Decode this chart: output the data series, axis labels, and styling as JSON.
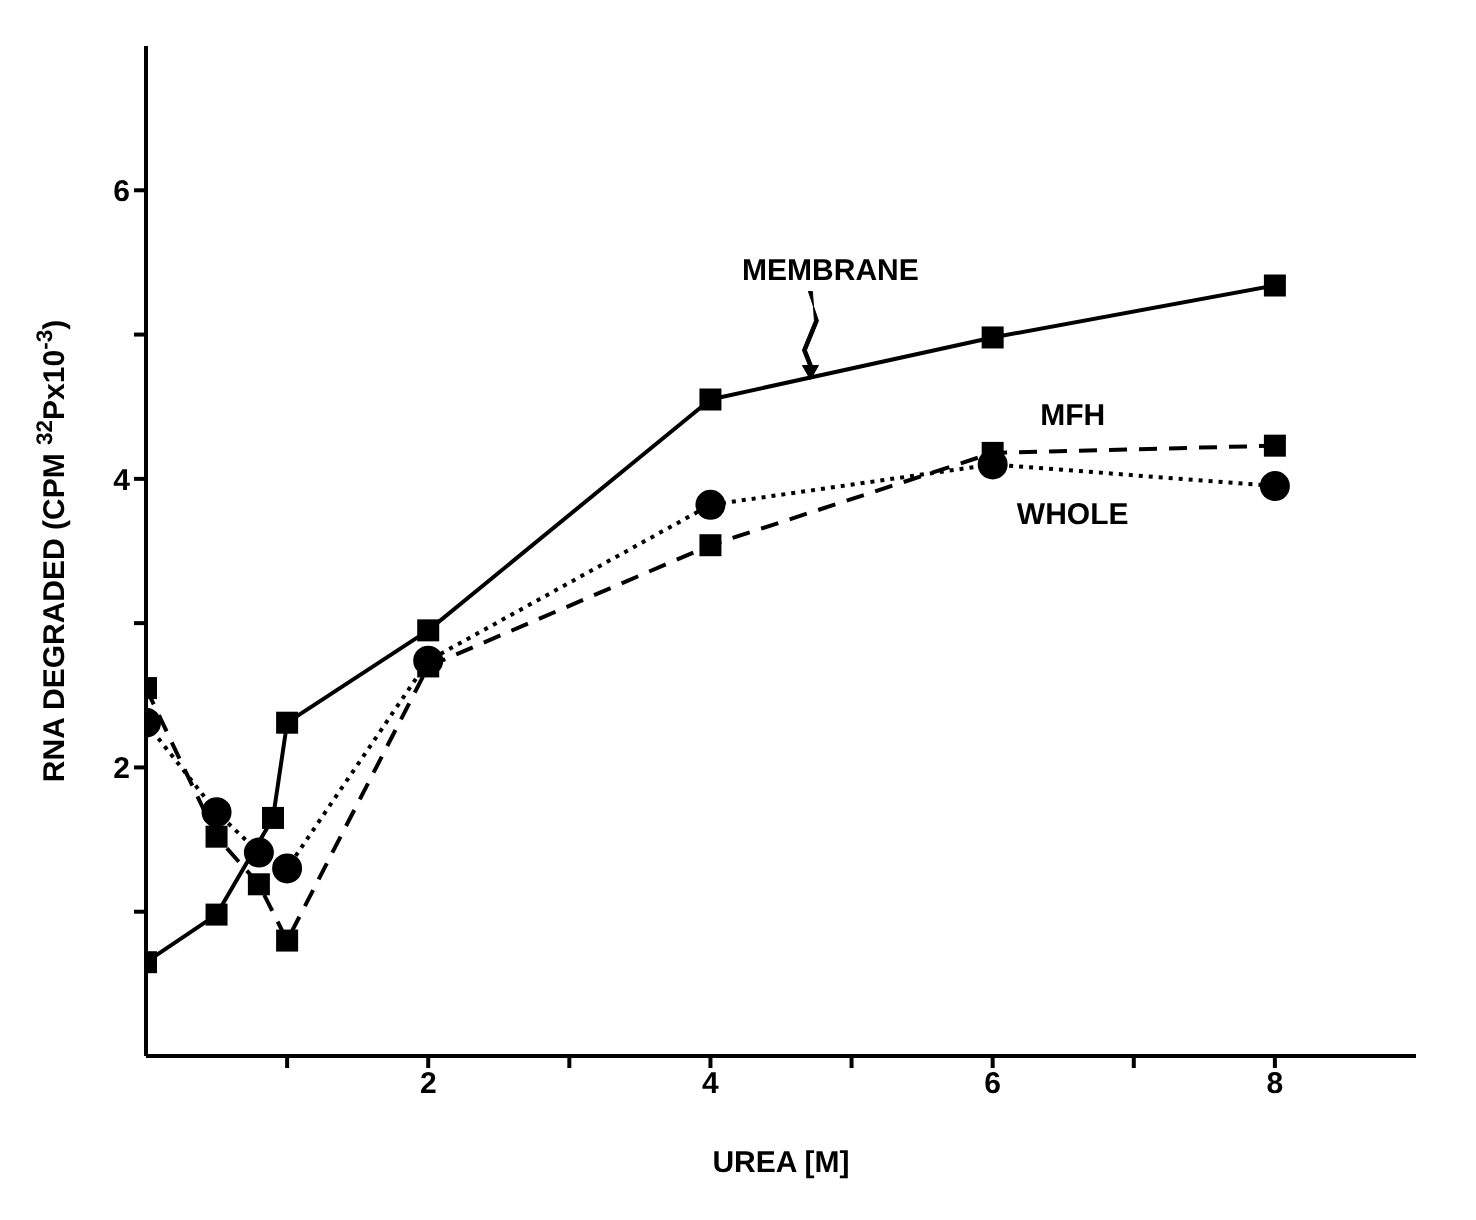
{
  "chart_data": {
    "type": "line",
    "xlabel": "UREA [M]",
    "ylabel": "RNA DEGRADED (CPM $^{32}$Px10$^{-3}$)",
    "xlim": [
      0,
      9
    ],
    "xticks": [
      {
        "value": 1,
        "label": null
      },
      2,
      {
        "value": 3,
        "label": null
      },
      4,
      {
        "value": 5,
        "label": null
      },
      6,
      {
        "value": 7,
        "label": null
      },
      8
    ],
    "ylim": [
      0,
      7
    ],
    "yticks": [
      {
        "value": 1,
        "label": null
      },
      2,
      {
        "value": 3,
        "label": null
      },
      4,
      {
        "value": 5,
        "label": null
      },
      6
    ],
    "grid": false,
    "series": [
      {
        "name": "MEMBRANE",
        "color": "#000000",
        "marker": "square",
        "line_style": "solid",
        "x": [
          0,
          0.5,
          0.9,
          1,
          2,
          4,
          6,
          8
        ],
        "values": [
          0.65,
          0.98,
          1.65,
          2.31,
          2.95,
          4.55,
          4.98,
          5.34
        ]
      },
      {
        "name": "MFH",
        "color": "#000000",
        "marker": "square",
        "line_style": "dashed",
        "x": [
          0,
          0.5,
          0.8,
          1,
          2,
          4,
          6,
          8
        ],
        "values": [
          2.55,
          1.52,
          1.19,
          0.8,
          2.7,
          3.54,
          4.18,
          4.23
        ]
      },
      {
        "name": "WHOLE",
        "color": "#000000",
        "marker": "circle",
        "line_style": "dotted",
        "x": [
          0,
          0.5,
          0.8,
          1,
          2,
          4,
          6,
          8
        ],
        "values": [
          2.31,
          1.69,
          1.41,
          1.3,
          2.74,
          3.82,
          4.1,
          3.95
        ]
      }
    ]
  }
}
